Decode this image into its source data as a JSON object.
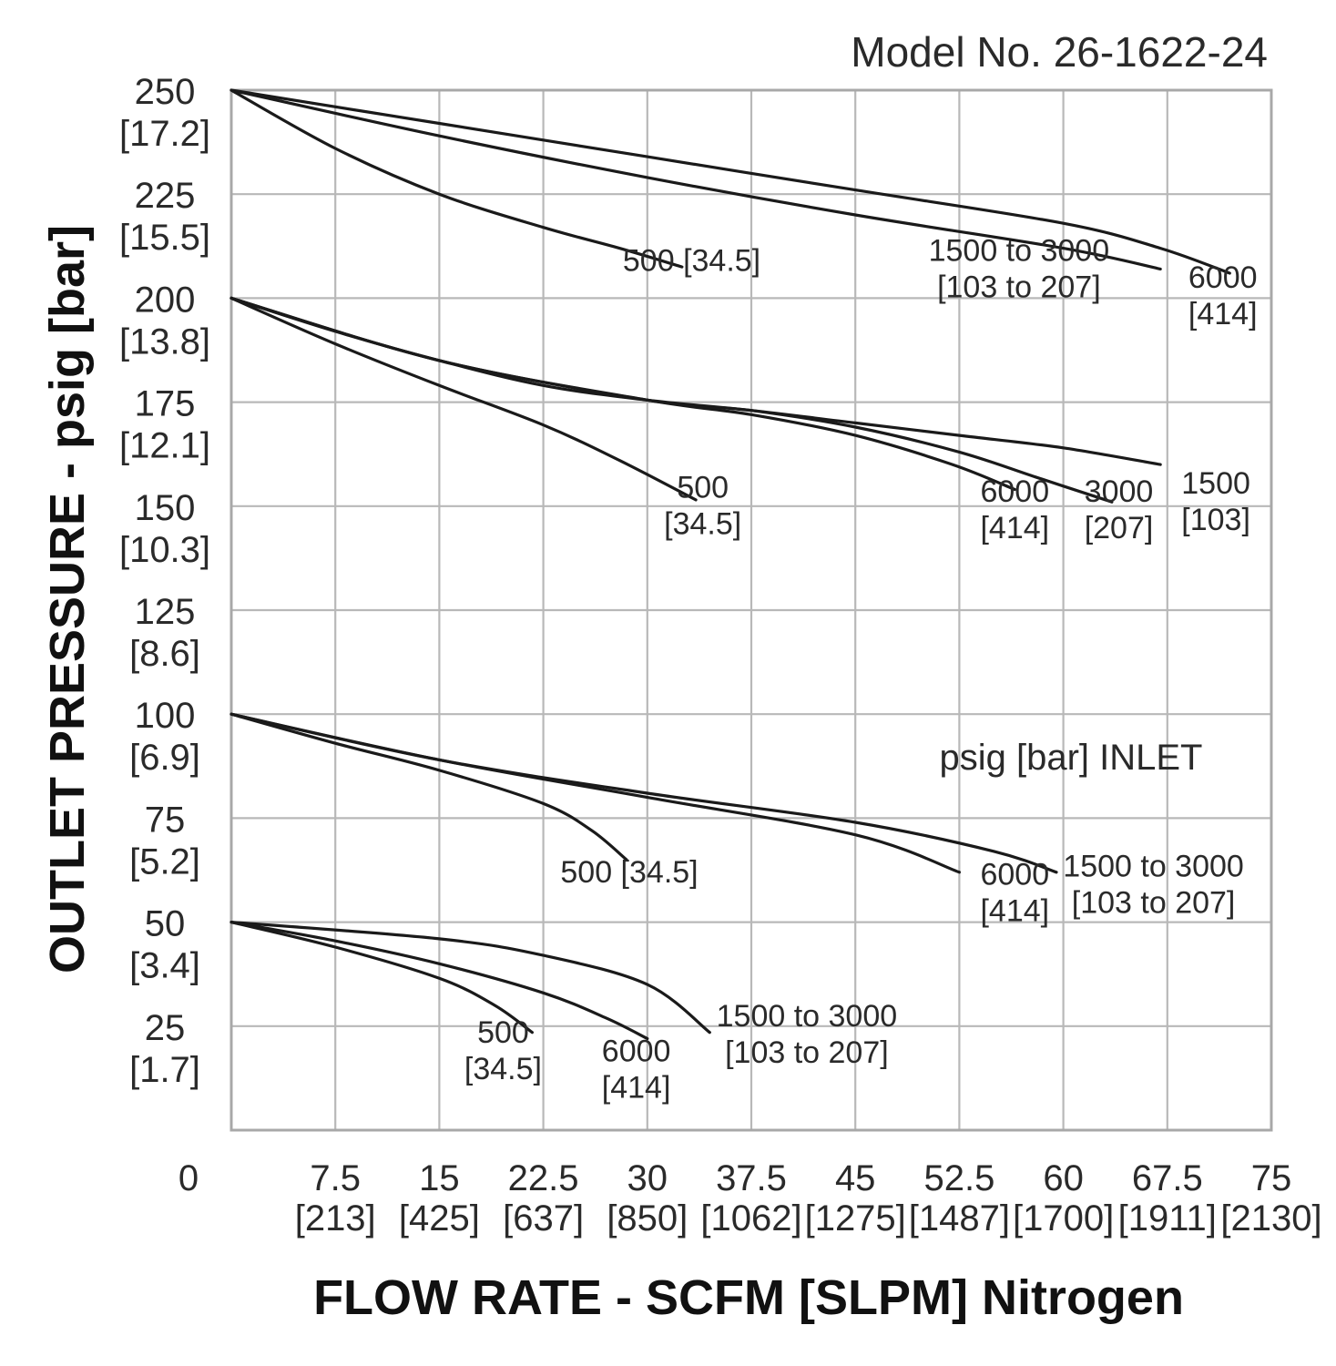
{
  "chart_data": {
    "type": "line",
    "title": "Model No. 26-1622-24",
    "xlabel": "FLOW RATE - SCFM [SLPM] Nitrogen",
    "ylabel": "OUTLET PRESSURE - psig [bar]",
    "annotation": "psig [bar] INLET",
    "xlim": [
      0,
      75
    ],
    "ylim": [
      0,
      250
    ],
    "grid": true,
    "x_ticks": [
      {
        "value": 0,
        "label": "0",
        "sub": ""
      },
      {
        "value": 7.5,
        "label": "7.5",
        "sub": "[213]"
      },
      {
        "value": 15,
        "label": "15",
        "sub": "[425]"
      },
      {
        "value": 22.5,
        "label": "22.5",
        "sub": "[637]"
      },
      {
        "value": 30,
        "label": "30",
        "sub": "[850]"
      },
      {
        "value": 37.5,
        "label": "37.5",
        "sub": "[1062]"
      },
      {
        "value": 45,
        "label": "45",
        "sub": "[1275]"
      },
      {
        "value": 52.5,
        "label": "52.5",
        "sub": "[1487]"
      },
      {
        "value": 60,
        "label": "60",
        "sub": "[1700]"
      },
      {
        "value": 67.5,
        "label": "67.5",
        "sub": "[1911]"
      },
      {
        "value": 75,
        "label": "75",
        "sub": "[2130]"
      }
    ],
    "y_ticks": [
      {
        "value": 250,
        "label": "250",
        "sub": "[17.2]"
      },
      {
        "value": 225,
        "label": "225",
        "sub": "[15.5]"
      },
      {
        "value": 200,
        "label": "200",
        "sub": "[13.8]"
      },
      {
        "value": 175,
        "label": "175",
        "sub": "[12.1]"
      },
      {
        "value": 150,
        "label": "150",
        "sub": "[10.3]"
      },
      {
        "value": 125,
        "label": "125",
        "sub": "[8.6]"
      },
      {
        "value": 100,
        "label": "100",
        "sub": "[6.9]"
      },
      {
        "value": 75,
        "label": "75",
        "sub": "[5.2]"
      },
      {
        "value": 50,
        "label": "50",
        "sub": "[3.4]"
      },
      {
        "value": 25,
        "label": "25",
        "sub": "[1.7]"
      }
    ],
    "series": [
      {
        "name": "250 psig setting, 500 [34.5] inlet",
        "points": [
          [
            0,
            250
          ],
          [
            7.5,
            236
          ],
          [
            15,
            225
          ],
          [
            22.5,
            217
          ],
          [
            28,
            212
          ],
          [
            32.5,
            207.5
          ]
        ],
        "label_lines": [
          "500 [34.5]"
        ],
        "label_at": [
          33.2,
          206.5
        ]
      },
      {
        "name": "250 psig setting, 1500 to 3000 [103 to 207] inlet",
        "points": [
          [
            0,
            250
          ],
          [
            15,
            239
          ],
          [
            30,
            229
          ],
          [
            45,
            220
          ],
          [
            60,
            212
          ],
          [
            67,
            207
          ]
        ],
        "label_lines": [
          "1500 to 3000",
          "[103 to 207]"
        ],
        "label_at": [
          56.8,
          209
        ]
      },
      {
        "name": "250 psig setting, 6000 [414] inlet",
        "points": [
          [
            0,
            250
          ],
          [
            15,
            242
          ],
          [
            30,
            234
          ],
          [
            45,
            226
          ],
          [
            60,
            218
          ],
          [
            67,
            212
          ],
          [
            72,
            206
          ]
        ],
        "label_lines": [
          "6000",
          "[414]"
        ],
        "label_at": [
          71.5,
          202.5
        ]
      },
      {
        "name": "200 psig setting, 500 [34.5] inlet",
        "points": [
          [
            0,
            200
          ],
          [
            7.5,
            189
          ],
          [
            15,
            179
          ],
          [
            22.5,
            169.5
          ],
          [
            28,
            161
          ],
          [
            33.5,
            151.5
          ]
        ],
        "label_lines": [
          "500",
          "[34.5]"
        ],
        "label_at": [
          34,
          152
        ]
      },
      {
        "name": "200 psig setting, 1500 [103] inlet",
        "points": [
          [
            0,
            200
          ],
          [
            7.5,
            192
          ],
          [
            15,
            185
          ],
          [
            22.5,
            179
          ],
          [
            30,
            175.5
          ],
          [
            37.5,
            173
          ],
          [
            45,
            170
          ],
          [
            52.5,
            167
          ],
          [
            60,
            164
          ],
          [
            67,
            160
          ]
        ],
        "label_lines": [
          "1500",
          "[103]"
        ],
        "label_at": [
          71,
          153
        ]
      },
      {
        "name": "200 psig setting, 3000 [207] inlet",
        "points": [
          [
            0,
            200
          ],
          [
            15,
            185
          ],
          [
            30,
            175.5
          ],
          [
            37.5,
            173
          ],
          [
            45,
            169
          ],
          [
            52.5,
            163
          ],
          [
            58,
            157
          ],
          [
            63.5,
            151
          ]
        ],
        "label_lines": [
          "3000",
          "[207]"
        ],
        "label_at": [
          64,
          151
        ]
      },
      {
        "name": "200 psig setting, 6000 [414] inlet",
        "points": [
          [
            0,
            200
          ],
          [
            15,
            185
          ],
          [
            30,
            175.5
          ],
          [
            37.5,
            172
          ],
          [
            45,
            167
          ],
          [
            52,
            160
          ],
          [
            56.5,
            154
          ]
        ],
        "label_lines": [
          "6000",
          "[414]"
        ],
        "label_at": [
          56.5,
          151
        ]
      },
      {
        "name": "100 psig setting, 500 [34.5] inlet",
        "points": [
          [
            0,
            100
          ],
          [
            7.5,
            93
          ],
          [
            15,
            86.5
          ],
          [
            22.5,
            78.5
          ],
          [
            26,
            72
          ],
          [
            28.5,
            65
          ]
        ],
        "label_lines": [
          "500 [34.5]"
        ],
        "label_at": [
          28.7,
          59.5
        ]
      },
      {
        "name": "100 psig setting, 6000 [414] inlet",
        "points": [
          [
            0,
            100
          ],
          [
            15,
            89
          ],
          [
            30,
            80
          ],
          [
            45,
            71
          ],
          [
            52.5,
            62
          ]
        ],
        "label_lines": [
          "6000",
          "[414]"
        ],
        "label_at": [
          56.5,
          59
        ]
      },
      {
        "name": "100 psig setting, 1500 to 3000 [103 to 207] inlet",
        "points": [
          [
            0,
            100
          ],
          [
            15,
            89
          ],
          [
            30,
            81
          ],
          [
            45,
            74
          ],
          [
            55,
            67
          ],
          [
            59.5,
            62
          ]
        ],
        "label_lines": [
          "1500 to 3000",
          "[103 to 207]"
        ],
        "label_at": [
          66.5,
          61
        ]
      },
      {
        "name": "50 psig setting, 500 [34.5] inlet",
        "points": [
          [
            0,
            50
          ],
          [
            7.5,
            44
          ],
          [
            15,
            36.5
          ],
          [
            19,
            30
          ],
          [
            21.7,
            23.5
          ]
        ],
        "label_lines": [
          "500",
          "[34.5]"
        ],
        "label_at": [
          19.6,
          21
        ]
      },
      {
        "name": "50 psig setting, 6000 [414] inlet",
        "points": [
          [
            0,
            50
          ],
          [
            7.5,
            45.5
          ],
          [
            15,
            40
          ],
          [
            22.5,
            33
          ],
          [
            27,
            27
          ],
          [
            30,
            22
          ]
        ],
        "label_lines": [
          "6000",
          "[414]"
        ],
        "label_at": [
          29.2,
          16.5
        ]
      },
      {
        "name": "50 psig setting, 1500 to 3000 [103 to 207] inlet",
        "points": [
          [
            0,
            50
          ],
          [
            15,
            46
          ],
          [
            22.5,
            42
          ],
          [
            30,
            35
          ],
          [
            34.5,
            23.5
          ]
        ],
        "label_lines": [
          "1500 to 3000",
          "[103 to 207]"
        ],
        "label_at": [
          41.5,
          25
        ]
      }
    ]
  }
}
